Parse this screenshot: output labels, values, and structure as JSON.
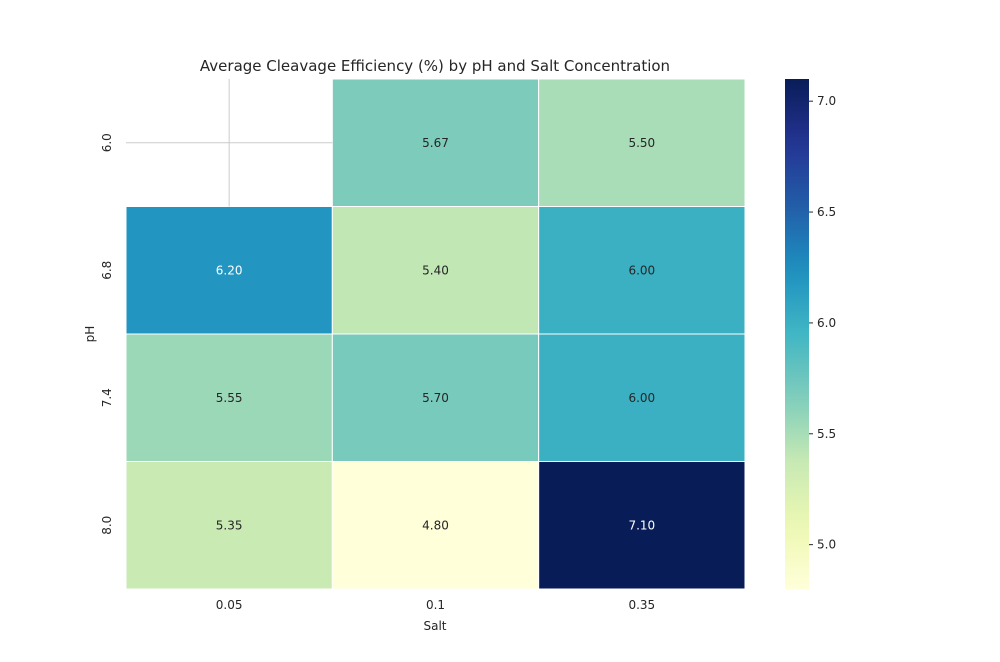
{
  "chart_data": {
    "type": "heatmap",
    "title": "Average Cleavage Efficiency (%) by pH and Salt Concentration",
    "xlabel": "Salt",
    "ylabel": "pH",
    "x_categories": [
      "0.05",
      "0.1",
      "0.35"
    ],
    "y_categories": [
      "6.0",
      "6.8",
      "7.4",
      "8.0"
    ],
    "values": [
      [
        null,
        5.67,
        5.5
      ],
      [
        6.2,
        5.4,
        6.0
      ],
      [
        5.55,
        5.7,
        6.0
      ],
      [
        5.35,
        4.8,
        7.1
      ]
    ],
    "value_labels": [
      [
        "",
        "5.67",
        "5.50"
      ],
      [
        "6.20",
        "5.40",
        "6.00"
      ],
      [
        "5.55",
        "5.70",
        "6.00"
      ],
      [
        "5.35",
        "4.80",
        "7.10"
      ]
    ],
    "colorbar": {
      "range": [
        4.8,
        7.1
      ],
      "ticks": [
        "5.0",
        "5.5",
        "6.0",
        "6.5",
        "7.0"
      ],
      "colormap": "YlGnBu"
    },
    "grid": true
  }
}
